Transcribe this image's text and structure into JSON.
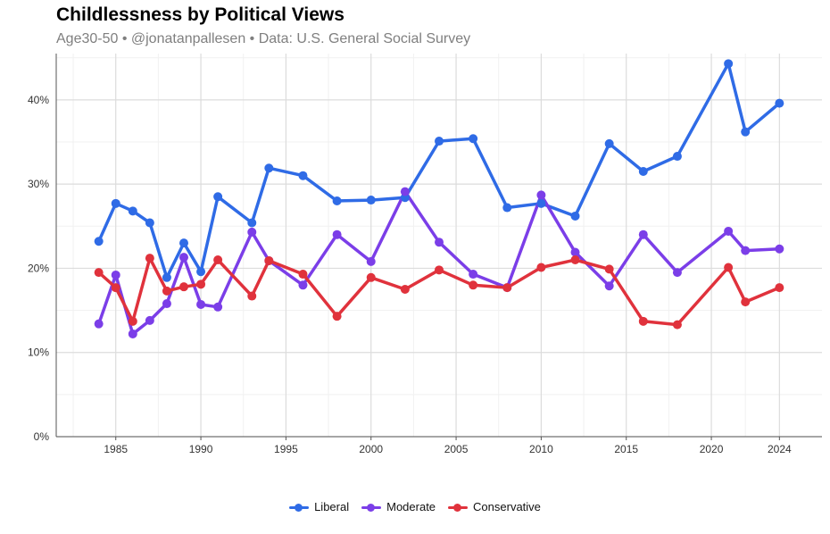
{
  "chart_data": {
    "type": "line",
    "title": "Childlessness by Political Views",
    "subtitle": "Age30-50 • @jonatanpallesen • Data: U.S. General Social Survey",
    "xlabel": "",
    "ylabel": "",
    "xlim": [
      1981.5,
      2026.5
    ],
    "ylim": [
      0,
      45.5
    ],
    "x_ticks": [
      1985,
      1990,
      1995,
      2000,
      2005,
      2010,
      2015,
      2020,
      2024
    ],
    "x_tick_labels": [
      "1985",
      "1990",
      "1995",
      "2000",
      "2005",
      "2010",
      "2015",
      "2020",
      "2024"
    ],
    "y_ticks": [
      0,
      10,
      20,
      30,
      40
    ],
    "y_tick_labels": [
      "0%",
      "10%",
      "20%",
      "30%",
      "40%"
    ],
    "legend_position": "bottom",
    "x": [
      1984,
      1985,
      1986,
      1987,
      1988,
      1989,
      1990,
      1991,
      1993,
      1994,
      1996,
      1998,
      2000,
      2002,
      2004,
      2006,
      2008,
      2010,
      2012,
      2014,
      2016,
      2018,
      2021,
      2022,
      2024
    ],
    "series": [
      {
        "name": "Liberal",
        "color": "#2F6BE6",
        "values": [
          23.2,
          27.7,
          26.8,
          25.4,
          18.9,
          23.0,
          19.6,
          28.5,
          25.4,
          31.9,
          31.0,
          28.0,
          28.1,
          28.4,
          35.1,
          35.4,
          27.2,
          27.7,
          26.2,
          34.8,
          31.5,
          33.3,
          44.3,
          36.2,
          39.6
        ]
      },
      {
        "name": "Moderate",
        "color": "#7B3EE8",
        "values": [
          13.4,
          19.2,
          12.2,
          13.8,
          15.8,
          21.3,
          15.7,
          15.4,
          24.3,
          20.9,
          18.0,
          24.0,
          20.8,
          29.1,
          23.1,
          19.3,
          17.7,
          28.7,
          21.9,
          17.9,
          24.0,
          19.5,
          24.4,
          22.1,
          22.3
        ]
      },
      {
        "name": "Conservative",
        "color": "#E0323C",
        "values": [
          19.5,
          17.7,
          13.7,
          21.2,
          17.3,
          17.8,
          18.1,
          21.0,
          16.7,
          20.9,
          19.3,
          14.3,
          18.9,
          17.5,
          19.8,
          18.0,
          17.7,
          20.1,
          21.0,
          19.9,
          13.7,
          13.3,
          20.1,
          16.0,
          17.7
        ]
      }
    ]
  }
}
